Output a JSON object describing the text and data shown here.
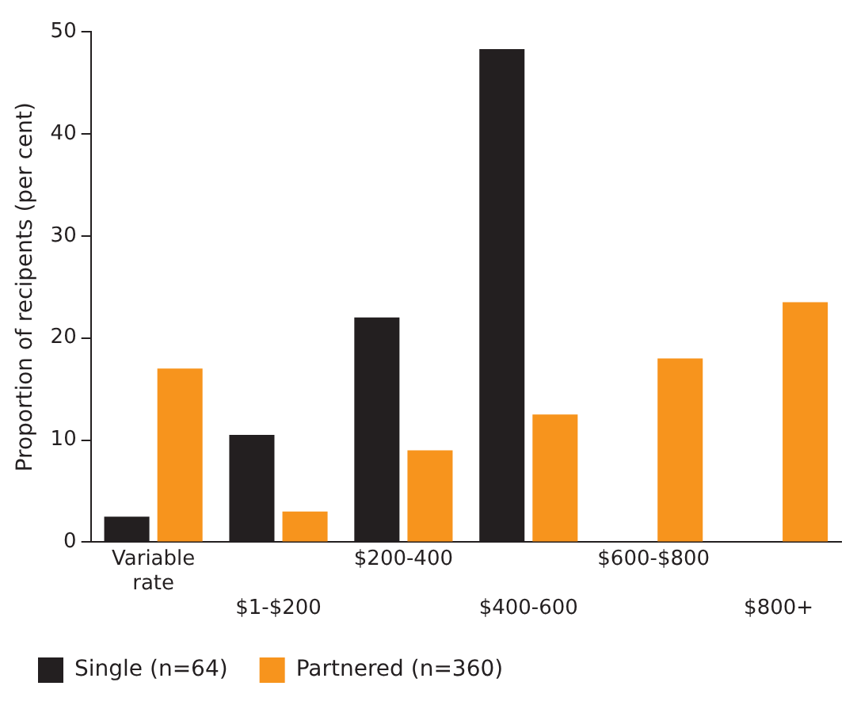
{
  "chart_data": {
    "type": "bar",
    "ylabel": "Proportion of recipents (per cent)",
    "categories": [
      "Variable rate",
      "$1-$200",
      "$200-400",
      "$400-600",
      "$600-$800",
      "$800+"
    ],
    "series": [
      {
        "name": "Single (n=64)",
        "color": "#231f20",
        "values": [
          2.5,
          10.5,
          22,
          48.3,
          0,
          0
        ]
      },
      {
        "name": "Partnered (n=360)",
        "color": "#f7941d",
        "values": [
          17,
          3,
          9,
          12.5,
          18,
          23.5
        ]
      }
    ],
    "ylim": [
      0,
      50
    ],
    "yticks": [
      0,
      10,
      20,
      30,
      40,
      50
    ],
    "grid": false,
    "legend": "bottom left"
  }
}
